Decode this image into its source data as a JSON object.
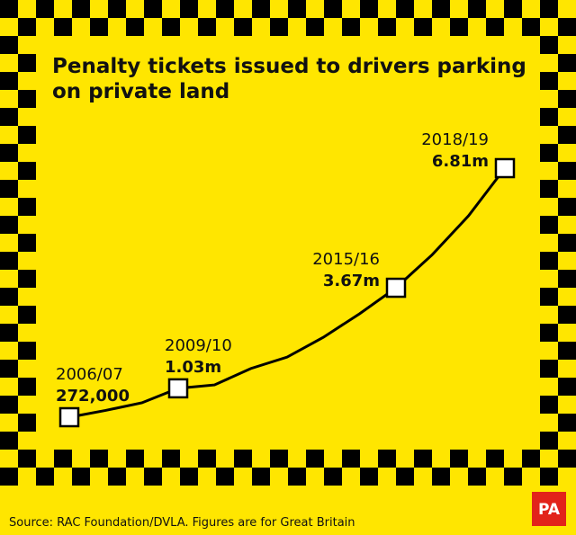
{
  "chart_data": {
    "type": "line",
    "title": "Penalty tickets issued to drivers parking on private land",
    "categories": [
      "2006/07",
      null,
      null,
      "2009/10",
      null,
      null,
      null,
      null,
      null,
      "2015/16",
      null,
      null,
      "2018/19"
    ],
    "values": [
      272000,
      450000,
      650000,
      1030000,
      1120000,
      1550000,
      1850000,
      2370000,
      2990000,
      3670000,
      4540000,
      5560000,
      6810000
    ],
    "value_labels": [
      "272,000",
      null,
      null,
      "1.03m",
      null,
      null,
      null,
      null,
      null,
      "3.67m",
      null,
      null,
      "6.81m"
    ],
    "color": "#000000",
    "source": "Source: RAC Foundation/DVLA. Figures are for Great Britain",
    "logo": "PA"
  }
}
